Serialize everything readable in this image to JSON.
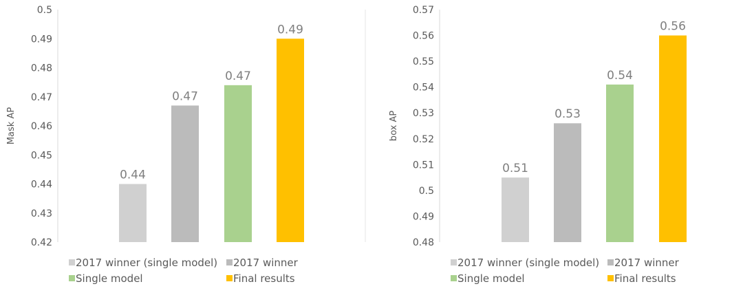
{
  "chart_data": [
    {
      "type": "bar",
      "ylabel": "Mask AP",
      "ylim": [
        0.42,
        0.5
      ],
      "yticks": [
        "0.42",
        "0.43",
        "0.44",
        "0.45",
        "0.46",
        "0.47",
        "0.48",
        "0.49",
        "0.5"
      ],
      "categories": [
        "2017 winner (single model)",
        "2017 winner",
        "Single model",
        "Final results"
      ],
      "values": [
        0.44,
        0.467,
        0.474,
        0.49
      ],
      "data_labels": [
        "0.44",
        "0.47",
        "0.47",
        "0.49"
      ],
      "colors": [
        "#d0d0d0",
        "#bbbbbb",
        "#a9d18e",
        "#ffc000"
      ],
      "grid": false,
      "legend": "bottom"
    },
    {
      "type": "bar",
      "ylabel": "box AP",
      "ylim": [
        0.48,
        0.57
      ],
      "yticks": [
        "0.48",
        "0.49",
        "0.5",
        "0.51",
        "0.52",
        "0.53",
        "0.54",
        "0.55",
        "0.56",
        "0.57"
      ],
      "categories": [
        "2017 winner (single model)",
        "2017 winner",
        "Single model",
        "Final results"
      ],
      "values": [
        0.505,
        0.526,
        0.541,
        0.56
      ],
      "data_labels": [
        "0.51",
        "0.53",
        "0.54",
        "0.56"
      ],
      "colors": [
        "#d0d0d0",
        "#bbbbbb",
        "#a9d18e",
        "#ffc000"
      ],
      "grid": false,
      "legend": "bottom"
    }
  ]
}
